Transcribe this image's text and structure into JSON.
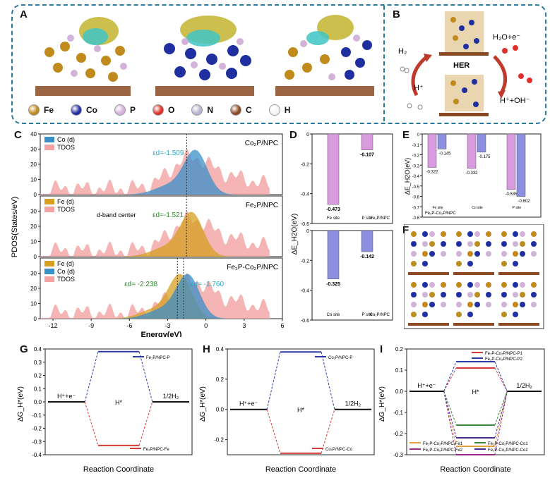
{
  "panels": {
    "A": "A",
    "B": "B",
    "C": "C",
    "D": "D",
    "E": "E",
    "F": "F",
    "G": "G",
    "H": "H",
    "I": "I"
  },
  "atom_legend": [
    {
      "label": "Fe",
      "color": "#c08a1c"
    },
    {
      "label": "Co",
      "color": "#1f2fa0"
    },
    {
      "label": "P",
      "color": "#d3b2d9"
    },
    {
      "label": "O",
      "color": "#e0302c"
    },
    {
      "label": "N",
      "color": "#b9b3cf"
    },
    {
      "label": "C",
      "color": "#8a4a22"
    },
    {
      "label": "H",
      "color": "#f4f4f4"
    }
  ],
  "panel_b": {
    "h2": "H₂",
    "hplus": "H⁺",
    "her": "HER",
    "h2o": "H₂O+e⁻",
    "products": "H⁺+OH⁻"
  },
  "chart_data": [
    {
      "id": "C",
      "type": "area",
      "ylabel": "PDOS(States/eV)",
      "xlabel": "Energy(eV)",
      "xlim": [
        -13,
        6
      ],
      "xticks": [
        -12,
        -9,
        -6,
        -3,
        0,
        3,
        6
      ],
      "subplots": [
        {
          "title": "Co₂P/NPC",
          "legend": [
            "Co (d)",
            "TDOS"
          ],
          "ylim": [
            0,
            40
          ],
          "yticks": [
            0,
            10,
            20,
            30,
            40
          ],
          "annotation": "εd=-1.509",
          "center": -1.509
        },
        {
          "title": "Fe₂P/NPC",
          "legend": [
            "Fe (d)",
            "TDOS"
          ],
          "ylim": [
            0,
            40
          ],
          "yticks": [
            0,
            10,
            20,
            30
          ],
          "annotation": "εd=-1.521",
          "center": -1.521,
          "extra": "d-band center"
        },
        {
          "title": "Fe₂P-Co₂P/NPC",
          "legend": [
            "Fe (d)",
            "Co (d)",
            "TDOS"
          ],
          "ylim": [
            0,
            40
          ],
          "yticks": [
            0,
            10,
            20,
            30
          ],
          "annotation": [
            "εd= -2.238",
            "εd= -1.760"
          ],
          "centers": [
            -2.238,
            -1.76
          ]
        }
      ]
    },
    {
      "id": "D",
      "type": "bar",
      "ylabel": "ΔE_H2O(eV)",
      "top": {
        "ylim": [
          -0.6,
          0
        ],
        "yticks": [
          0,
          -0.2,
          -0.4,
          -0.6
        ],
        "categories": [
          "Fe site",
          "P site"
        ],
        "values": [
          -0.473,
          -0.107
        ],
        "labels": [
          "-0.473",
          "-0.107"
        ],
        "system": "Fe₂P/NPC"
      },
      "bottom": {
        "ylim": [
          -0.6,
          0
        ],
        "yticks": [
          0,
          -0.2,
          -0.4,
          -0.6
        ],
        "categories": [
          "Co site",
          "P site"
        ],
        "values": [
          -0.325,
          -0.142
        ],
        "labels": [
          "-0.325",
          "-0.142"
        ],
        "system": "Co₂P/NPC"
      }
    },
    {
      "id": "E",
      "type": "bar",
      "ylabel": "ΔE_H2O(eV)",
      "ylim": [
        -0.8,
        0
      ],
      "yticks": [
        0,
        -0.1,
        -0.2,
        -0.3,
        -0.4,
        -0.5,
        -0.6,
        -0.7,
        -0.8
      ],
      "categories": [
        "Fe site",
        "Co site",
        "P site"
      ],
      "series": [
        {
          "values": [
            -0.322,
            -0.332,
            -0.535
          ],
          "labels": [
            "-0.322",
            "-0.332",
            "-0.535"
          ]
        },
        {
          "values": [
            -0.145,
            -0.175,
            -0.602
          ],
          "labels": [
            "-0.145",
            "-0.175",
            "-0.602"
          ]
        }
      ],
      "system": "Fe₂P-Co₂P/NPC"
    },
    {
      "id": "G",
      "type": "line",
      "ylabel": "ΔG_H*(eV)",
      "xlabel": "Reaction Coordinate",
      "ylim": [
        -0.4,
        0.4
      ],
      "yticks": [
        -0.4,
        -0.3,
        -0.2,
        -0.1,
        0.0,
        0.1,
        0.2,
        0.3,
        0.4
      ],
      "states": [
        "H⁺+e⁻",
        "H*",
        "1/2H₂"
      ],
      "series": [
        {
          "name": "Fe₂P/NPC-P",
          "color": "#2b3aa8",
          "value": 0.38
        },
        {
          "name": "Fe₂P/NPC-Fe",
          "color": "#d43a3a",
          "value": -0.33
        }
      ]
    },
    {
      "id": "H",
      "type": "line",
      "ylabel": "ΔG_H*(eV)",
      "xlabel": "Reaction Coordinate",
      "ylim": [
        -0.3,
        0.4
      ],
      "yticks": [
        -0.2,
        0.0,
        0.2,
        0.4
      ],
      "states": [
        "H⁺+e⁻",
        "H*",
        "1/2H₂"
      ],
      "series": [
        {
          "name": "Co₂P/NPC-P",
          "color": "#2b3aa8",
          "value": 0.38
        },
        {
          "name": "Co₂P/NPC-Co",
          "color": "#d43a3a",
          "value": -0.29
        }
      ]
    },
    {
      "id": "I",
      "type": "line",
      "ylabel": "ΔG_H*(eV)",
      "xlabel": "Reaction Coordinate",
      "ylim": [
        -0.3,
        0.2
      ],
      "yticks": [
        -0.3,
        -0.2,
        -0.1,
        0.0,
        0.1,
        0.2
      ],
      "states": [
        "H⁺+e⁻",
        "H*",
        "1/2H₂"
      ],
      "series": [
        {
          "name": "Fe₂P-Co₂P/NPC-P1",
          "color": "#d43a3a",
          "value": 0.11
        },
        {
          "name": "Fe₂P-Co₂P/NPC-P2",
          "color": "#2b3aa8",
          "value": 0.14
        },
        {
          "name": "Fe₂P-Co₂P/NPC-Fe1",
          "color": "#e8a13a",
          "value": -0.26
        },
        {
          "name": "Fe₂P-Co₂P/NPC-Co1",
          "color": "#3a8a3a",
          "value": -0.16
        },
        {
          "name": "Fe₂P-Co₂P/NPC-Fe2",
          "color": "#9a2a8a",
          "value": -0.3
        },
        {
          "name": "Fe₂P-Co₂P/NPC-Co2",
          "color": "#4a2a8a",
          "value": -0.22
        }
      ]
    }
  ]
}
